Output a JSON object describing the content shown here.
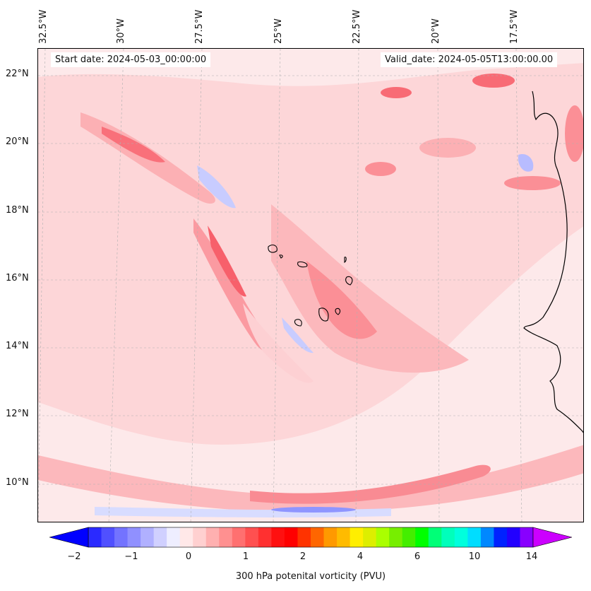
{
  "map": {
    "title_start": "Start date: 2024-05-03_00:00:00",
    "title_valid": "Valid_date: 2024-05-05T13:00:00.00",
    "lon_labels": [
      "32.5°W",
      "30°W",
      "27.5°W",
      "25°W",
      "22.5°W",
      "20°W",
      "17.5°W"
    ],
    "lat_labels": [
      "22°N",
      "20°N",
      "18°N",
      "16°N",
      "14°N",
      "12°N",
      "10°N"
    ],
    "field": "300 hPa potential vorticity",
    "background_color": "#fde9ea"
  },
  "colorbar": {
    "label": "300 hPa potenital vorticity (PVU)",
    "tick_labels": [
      "−2",
      "−1",
      "0",
      "1",
      "2",
      "4",
      "6",
      "10",
      "14"
    ],
    "colors": [
      "#0000ff",
      "#2a2aff",
      "#5050ff",
      "#7373ff",
      "#9090ff",
      "#b0b0ff",
      "#d0d0ff",
      "#eeeeff",
      "#ffe8e8",
      "#ffd0d0",
      "#ffb0b0",
      "#ff9090",
      "#ff7070",
      "#ff5050",
      "#ff3030",
      "#ff1010",
      "#ff0000",
      "#ff3300",
      "#ff6600",
      "#ff9900",
      "#ffbb00",
      "#ffee00",
      "#ddee00",
      "#aaff00",
      "#77ee00",
      "#44ee00",
      "#00ff00",
      "#00ff77",
      "#00ffbb",
      "#00ffdd",
      "#00ddff",
      "#0088ff",
      "#0022ff",
      "#2200ff",
      "#8800ff",
      "#cc00ff"
    ]
  }
}
